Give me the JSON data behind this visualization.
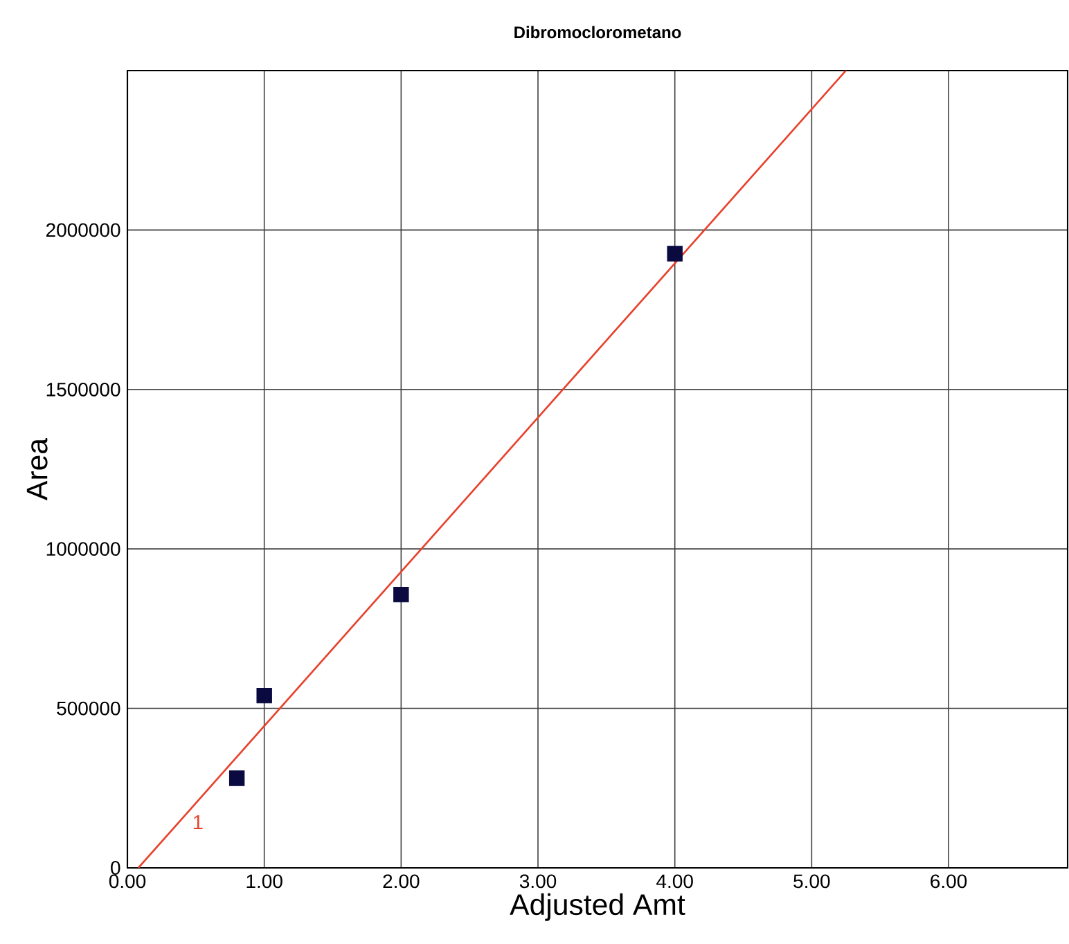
{
  "chart_data": {
    "type": "scatter",
    "title": "Dibromoclorometano",
    "xlabel": "Adjusted Amt",
    "ylabel": "Area",
    "x": [
      0.8,
      1.0,
      2.0,
      4.0
    ],
    "series": [
      {
        "color": "#0a0a40",
        "values": [
          281000,
          540000,
          857000,
          1926000
        ],
        "marker": "square"
      },
      {
        "type": "line",
        "color": "#e8412c",
        "x": [
          0.08,
          5.25
        ],
        "values": [
          0,
          2500000
        ],
        "marker": "none",
        "line_style": "solid"
      }
    ],
    "annotations": [
      "1"
    ],
    "xlim": [
      0,
      6.87
    ],
    "ylim": [
      0,
      2500000
    ],
    "xticks": [
      {
        "value": 0,
        "label": "0.00"
      },
      {
        "value": 1,
        "label": "1.00"
      },
      {
        "value": 2,
        "label": "2.00"
      },
      {
        "value": 3,
        "label": "3.00"
      },
      {
        "value": 4,
        "label": "4.00"
      },
      {
        "value": 5,
        "label": "5.00"
      },
      {
        "value": 6,
        "label": "6.00"
      }
    ],
    "yticks": [
      0,
      500000,
      1000000,
      1500000,
      2000000
    ],
    "grid": true
  }
}
